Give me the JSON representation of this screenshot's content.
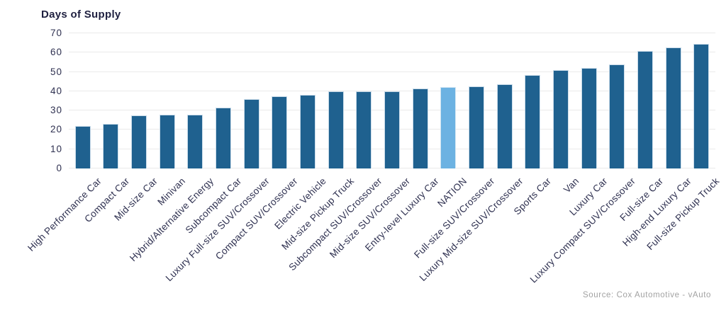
{
  "header": {
    "title": "Days of Supply"
  },
  "footer": {
    "source": "Source: Cox Automotive - vAuto"
  },
  "colors": {
    "bar": "#1f618f",
    "highlight_bar": "#6cb2e2",
    "title_text": "#1f2040",
    "axis_text": "#2e3050",
    "grid_line": "#eaeaea",
    "source_text": "#a2a2a2"
  },
  "chart_data": {
    "type": "bar",
    "title": "Days of Supply",
    "xlabel": "",
    "ylabel": "Days of Supply",
    "ylim": [
      0,
      70
    ],
    "yticks": [
      0,
      10,
      20,
      30,
      40,
      50,
      60,
      70
    ],
    "grid": true,
    "legend": false,
    "highlight_category": "NATION",
    "categories": [
      "High Performance Car",
      "Compact Car",
      "Mid-size Car",
      "Minivan",
      "Hybrid/Alternative Energy",
      "Subcompact Car",
      "Luxury Full-size SUV/Crossover",
      "Compact SUV/Crossover",
      "Electric Vehicle",
      "Mid-size Pickup Truck",
      "Subcompact SUV/Crossover",
      "Mid-size SUV/Crossover",
      "Entry-level Luxury Car",
      "NATION",
      "Full-size SUV/Crossover",
      "Luxury Mid-size SUV/Crossover",
      "Sports Car",
      "Van",
      "Luxury Car",
      "Luxury Compact SUV/Crossover",
      "Full-size Car",
      "High-end Luxury Car",
      "Full-size Pickup Truck"
    ],
    "values": [
      22,
      23,
      27.5,
      28,
      28,
      31.5,
      36,
      37.5,
      38,
      40,
      40,
      40,
      41.5,
      42,
      42.5,
      43.5,
      48.5,
      51,
      52,
      54,
      61,
      62.5,
      64.5
    ],
    "source": "Source: Cox Automotive - vAuto"
  }
}
